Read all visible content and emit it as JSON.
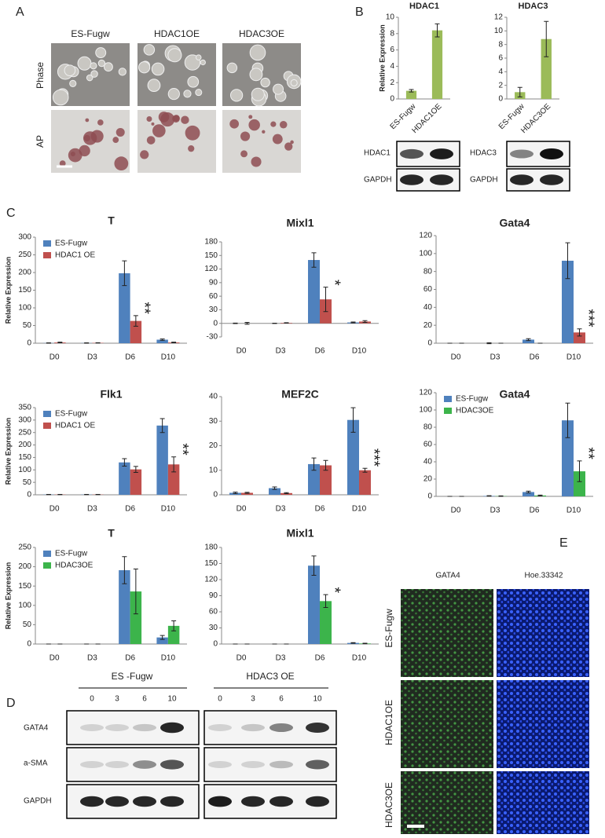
{
  "panel_labels": [
    "A",
    "B",
    "C",
    "D",
    "E"
  ],
  "panel_a": {
    "columns": [
      "ES-Fugw",
      "HDAC1OE",
      "HDAC3OE"
    ],
    "rows": [
      "Phase",
      "AP"
    ]
  },
  "panel_b": {
    "blots": [
      [
        "HDAC1",
        "GAPDH"
      ],
      [
        "HDAC3",
        "GAPDH"
      ]
    ]
  },
  "panel_d": {
    "groups": [
      {
        "label": "ES -Fugw",
        "lanes": [
          "0",
          "3",
          "6",
          "10"
        ]
      },
      {
        "label": "HDAC3 OE",
        "lanes": [
          "0",
          "3",
          "6",
          "10"
        ]
      }
    ],
    "rows": [
      "GATA4",
      "a-SMA",
      "GAPDH"
    ]
  },
  "panel_e": {
    "columns": [
      "GATA4",
      "Hoe.33342"
    ],
    "rows": [
      "ES-Fugw",
      "HDAC1OE",
      "HDAC3OE"
    ]
  },
  "chart_data": [
    {
      "type": "bar",
      "title": "HDAC1",
      "y_label": "Relative Expression",
      "categories": [
        "ES-Fugw",
        "HDAC1OE"
      ],
      "series": [
        {
          "color": "#9bbb59",
          "values": [
            1,
            8.4
          ],
          "errors": [
            0.15,
            0.8
          ]
        }
      ],
      "ylim": [
        0,
        10
      ],
      "yticks": [
        0,
        2,
        4,
        6,
        8,
        10
      ]
    },
    {
      "type": "bar",
      "title": "HDAC3",
      "categories": [
        "ES-Fugw",
        "HDAC3OE"
      ],
      "series": [
        {
          "color": "#9bbb59",
          "values": [
            1,
            8.8
          ],
          "errors": [
            0.7,
            2.6
          ]
        }
      ],
      "ylim": [
        0,
        12
      ],
      "yticks": [
        0,
        2,
        4,
        6,
        8,
        10,
        12
      ]
    },
    {
      "type": "bar",
      "title": "T",
      "y_label": "Relative Expression",
      "categories": [
        "D0",
        "D3",
        "D6",
        "D10"
      ],
      "series": [
        {
          "name": "ES-Fugw",
          "color": "#4f81bd",
          "values": [
            0.5,
            0.5,
            198,
            10
          ],
          "errors": [
            0.5,
            0.5,
            35,
            2
          ]
        },
        {
          "name": "HDAC1 OE",
          "color": "#c0504d",
          "values": [
            2,
            1,
            63,
            2
          ],
          "errors": [
            1,
            0.5,
            15,
            1
          ]
        }
      ],
      "ylim": [
        0,
        300
      ],
      "yticks": [
        0,
        50,
        100,
        150,
        200,
        250,
        300
      ],
      "legend": "upper left",
      "annotations": [
        {
          "text": "**",
          "category": "D6"
        }
      ]
    },
    {
      "type": "bar",
      "title": "Mixl1",
      "categories": [
        "D0",
        "D3",
        "D6",
        "D10"
      ],
      "series": [
        {
          "color": "#4f81bd",
          "values": [
            0,
            0,
            140,
            2
          ],
          "errors": [
            0.5,
            0.3,
            16,
            1
          ]
        },
        {
          "color": "#c0504d",
          "values": [
            0,
            1,
            53,
            4
          ],
          "errors": [
            2,
            0.5,
            27,
            2
          ]
        }
      ],
      "ylim": [
        -30,
        180
      ],
      "yticks": [
        -30,
        0,
        30,
        60,
        90,
        120,
        150,
        180
      ],
      "annotations": [
        {
          "text": "*",
          "category": "D6"
        }
      ]
    },
    {
      "type": "bar",
      "title": "Gata4",
      "categories": [
        "D0",
        "D3",
        "D6",
        "D10"
      ],
      "series": [
        {
          "color": "#4f81bd",
          "values": [
            0,
            0,
            4,
            92
          ],
          "errors": [
            0,
            0.5,
            1,
            20
          ]
        },
        {
          "color": "#c0504d",
          "values": [
            0,
            0,
            0,
            12
          ],
          "errors": [
            0,
            0,
            0,
            4
          ]
        }
      ],
      "ylim": [
        0,
        120
      ],
      "yticks": [
        0,
        20,
        40,
        60,
        80,
        100,
        120
      ],
      "annotations": [
        {
          "text": "***",
          "category": "D10"
        }
      ]
    },
    {
      "type": "bar",
      "title": "Flk1",
      "y_label": "Relative Expression",
      "categories": [
        "D0",
        "D3",
        "D6",
        "D10"
      ],
      "series": [
        {
          "name": "ES-Fugw",
          "color": "#4f81bd",
          "values": [
            1,
            1,
            130,
            278
          ],
          "errors": [
            0.5,
            0.5,
            15,
            28
          ]
        },
        {
          "name": "HDAC1 OE",
          "color": "#c0504d",
          "values": [
            1,
            1,
            102,
            122
          ],
          "errors": [
            0.5,
            0.5,
            12,
            30
          ]
        }
      ],
      "ylim": [
        0,
        350
      ],
      "yticks": [
        0,
        50,
        100,
        150,
        200,
        250,
        300,
        350
      ],
      "legend": "upper left",
      "annotations": [
        {
          "text": "**",
          "category": "D10"
        }
      ]
    },
    {
      "type": "bar",
      "title": "MEF2C",
      "categories": [
        "D0",
        "D3",
        "D6",
        "D10"
      ],
      "series": [
        {
          "color": "#4f81bd",
          "values": [
            0.8,
            2.7,
            12.5,
            30.5
          ],
          "errors": [
            0.3,
            0.5,
            2.5,
            5
          ]
        },
        {
          "color": "#c0504d",
          "values": [
            0.8,
            0.7,
            12,
            10
          ],
          "errors": [
            0.2,
            0.2,
            2,
            0.8
          ]
        }
      ],
      "ylim": [
        0,
        40
      ],
      "yticks": [
        0,
        10,
        20,
        30,
        40
      ],
      "annotations": [
        {
          "text": "***",
          "category": "D10"
        }
      ]
    },
    {
      "type": "bar",
      "title": "Gata4",
      "categories": [
        "D0",
        "D3",
        "D6",
        "D10"
      ],
      "series": [
        {
          "name": "ES-Fugw",
          "color": "#4f81bd",
          "values": [
            0,
            0.5,
            5,
            88
          ],
          "errors": [
            0,
            0.3,
            1,
            20
          ]
        },
        {
          "name": "HDAC3OE",
          "color": "#3cb44b",
          "values": [
            0,
            0.3,
            1,
            29
          ],
          "errors": [
            0,
            0.3,
            0.5,
            12
          ]
        }
      ],
      "ylim": [
        0,
        120
      ],
      "yticks": [
        0,
        20,
        40,
        60,
        80,
        100,
        120
      ],
      "legend": "upper left",
      "annotations": [
        {
          "text": "**",
          "category": "D10"
        }
      ]
    },
    {
      "type": "bar",
      "title": "T",
      "y_label": "Relative Expression",
      "categories": [
        "D0",
        "D3",
        "D6",
        "D10"
      ],
      "series": [
        {
          "name": "ES-Fugw",
          "color": "#4f81bd",
          "values": [
            0,
            0,
            191,
            17
          ],
          "errors": [
            0,
            0,
            35,
            5
          ]
        },
        {
          "name": "HDAC3OE",
          "color": "#3cb44b",
          "values": [
            0,
            0,
            136,
            47
          ],
          "errors": [
            0,
            0,
            58,
            13
          ]
        }
      ],
      "ylim": [
        0,
        250
      ],
      "yticks": [
        0,
        50,
        100,
        150,
        200,
        250
      ],
      "legend": "upper left"
    },
    {
      "type": "bar",
      "title": "Mixl1",
      "categories": [
        "D0",
        "D3",
        "D6",
        "D10"
      ],
      "series": [
        {
          "color": "#4f81bd",
          "values": [
            0,
            0,
            146,
            2
          ],
          "errors": [
            0,
            0,
            18,
            0.5
          ]
        },
        {
          "color": "#3cb44b",
          "values": [
            0,
            0,
            80,
            1
          ],
          "errors": [
            0,
            0,
            12,
            0.5
          ]
        }
      ],
      "ylim": [
        0,
        180
      ],
      "yticks": [
        0,
        30,
        60,
        90,
        120,
        150,
        180
      ],
      "annotations": [
        {
          "text": "*",
          "category": "D6"
        }
      ]
    }
  ]
}
